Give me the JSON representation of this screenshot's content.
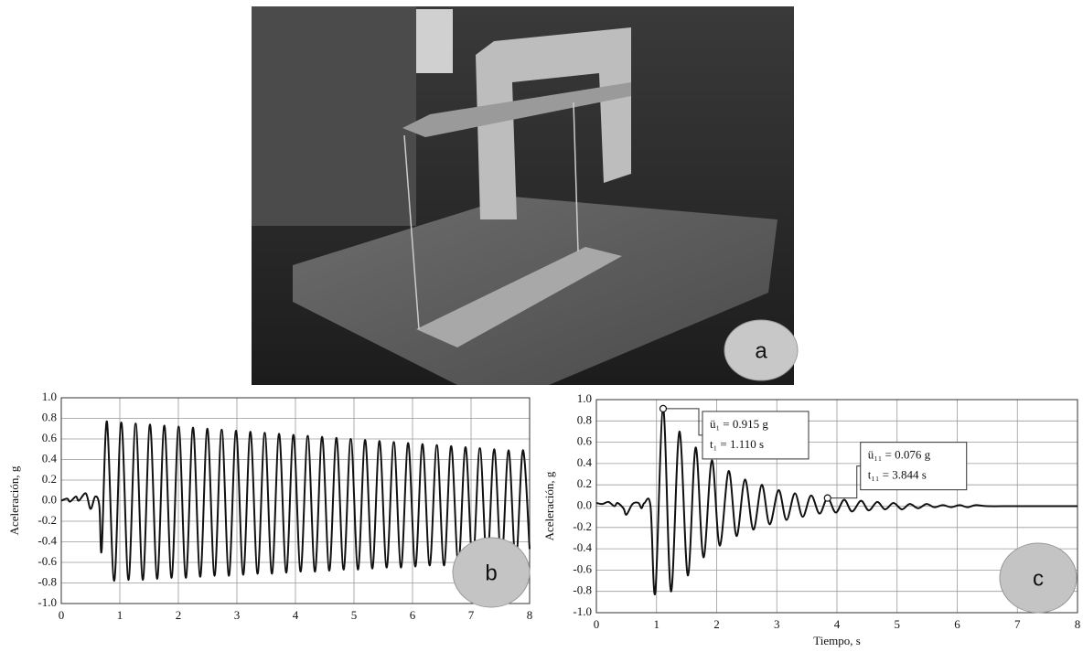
{
  "photo": {
    "label": "a"
  },
  "chart_data": [
    {
      "type": "line",
      "panel_label": "b",
      "ylabel": "Aceleración, g",
      "color": "#111111",
      "grid": true,
      "xlim": [
        0,
        8
      ],
      "xticks": [
        0,
        1,
        2,
        3,
        4,
        5,
        6,
        7,
        8
      ],
      "ylim": [
        -1,
        1
      ],
      "yticks": [
        {
          "value": -1,
          "label": "-1.0"
        },
        -0.8,
        -0.6,
        -0.4,
        -0.2,
        {
          "value": 0,
          "label": "0.0"
        },
        0.2,
        0.4,
        0.6,
        0.8,
        {
          "value": 1,
          "label": "1.0"
        }
      ],
      "x": [
        0,
        0.1,
        0.15,
        0.25,
        0.3,
        0.42,
        0.5,
        0.58,
        0.65,
        0.69,
        0.78,
        0.903,
        1.025,
        1.148,
        1.27,
        1.393,
        1.515,
        1.638,
        1.76,
        1.883,
        2.005,
        2.128,
        2.25,
        2.373,
        2.495,
        2.618,
        2.74,
        2.863,
        2.985,
        3.108,
        3.23,
        3.353,
        3.475,
        3.598,
        3.72,
        3.843,
        3.965,
        4.088,
        4.21,
        4.333,
        4.455,
        4.578,
        4.7,
        4.823,
        4.945,
        5.068,
        5.19,
        5.313,
        5.435,
        5.558,
        5.68,
        5.803,
        5.925,
        6.048,
        6.17,
        6.293,
        6.415,
        6.538,
        6.66,
        6.783,
        6.905,
        7.028,
        7.15,
        7.273,
        7.395,
        7.518,
        7.64,
        7.763,
        7.885,
        8.0
      ],
      "values": [
        0,
        0.02,
        -0.01,
        0.04,
        0.0,
        0.07,
        -0.08,
        0.04,
        -0.05,
        -0.48,
        0.77,
        -0.78,
        0.76,
        -0.77,
        0.75,
        -0.77,
        0.74,
        -0.76,
        0.73,
        -0.75,
        0.72,
        -0.75,
        0.71,
        -0.74,
        0.7,
        -0.73,
        0.69,
        -0.73,
        0.68,
        -0.72,
        0.67,
        -0.71,
        0.66,
        -0.71,
        0.65,
        -0.7,
        0.64,
        -0.69,
        0.63,
        -0.69,
        0.62,
        -0.68,
        0.61,
        -0.67,
        0.6,
        -0.67,
        0.59,
        -0.66,
        0.58,
        -0.65,
        0.57,
        -0.65,
        0.56,
        -0.64,
        0.55,
        -0.63,
        0.54,
        -0.63,
        0.53,
        -0.62,
        0.52,
        -0.61,
        0.51,
        -0.61,
        0.5,
        -0.6,
        0.49,
        -0.59,
        0.49,
        -0.47
      ]
    },
    {
      "type": "line",
      "panel_label": "c",
      "ylabel": "Aceleración, g",
      "xlabel": "Tiempo, s",
      "color": "#111111",
      "grid": true,
      "xlim": [
        0,
        8
      ],
      "xticks": [
        0,
        1,
        2,
        3,
        4,
        5,
        6,
        7,
        8
      ],
      "ylim": [
        -1,
        1
      ],
      "yticks": [
        {
          "value": -1,
          "label": "-1.0"
        },
        -0.8,
        -0.6,
        -0.4,
        -0.2,
        {
          "value": 0,
          "label": "0.0"
        },
        0.2,
        0.4,
        0.6,
        0.8,
        {
          "value": 1,
          "label": "1.0"
        }
      ],
      "x": [
        0,
        0.1,
        0.2,
        0.3,
        0.35,
        0.45,
        0.5,
        0.6,
        0.7,
        0.75,
        0.8,
        0.9,
        0.98,
        1.11,
        1.24,
        1.38,
        1.52,
        1.65,
        1.78,
        1.92,
        2.05,
        2.2,
        2.33,
        2.47,
        2.61,
        2.75,
        2.88,
        3.03,
        3.16,
        3.3,
        3.43,
        3.57,
        3.71,
        3.844,
        3.98,
        4.12,
        4.25,
        4.4,
        4.53,
        4.67,
        4.8,
        4.94,
        5.08,
        5.21,
        5.35,
        5.49,
        5.62,
        5.76,
        5.9,
        6.04,
        6.17,
        6.31,
        6.5,
        7.0,
        8.0
      ],
      "values": [
        0.03,
        0.02,
        0.04,
        0.0,
        0.03,
        -0.02,
        -0.08,
        0.02,
        0.03,
        -0.02,
        0.03,
        0.0,
        -0.81,
        0.915,
        -0.8,
        0.7,
        -0.65,
        0.55,
        -0.48,
        0.43,
        -0.37,
        0.33,
        -0.28,
        0.25,
        -0.22,
        0.2,
        -0.17,
        0.15,
        -0.13,
        0.12,
        -0.1,
        0.1,
        -0.07,
        0.076,
        -0.06,
        0.06,
        -0.05,
        0.05,
        -0.04,
        0.04,
        -0.03,
        0.03,
        -0.03,
        0.02,
        -0.02,
        0.02,
        -0.01,
        0.01,
        -0.01,
        0.01,
        -0.01,
        0.01,
        0.0,
        0.0,
        0.0
      ],
      "annotations": [
        {
          "x": 1.11,
          "y": 0.915,
          "lines": [
            "ü₁ = 0.915 g",
            "t₁ = 1.110 s"
          ]
        },
        {
          "x": 3.844,
          "y": 0.076,
          "lines": [
            "ü₁₁ = 0.076 g",
            "t₁₁ = 3.844 s"
          ]
        }
      ]
    }
  ]
}
